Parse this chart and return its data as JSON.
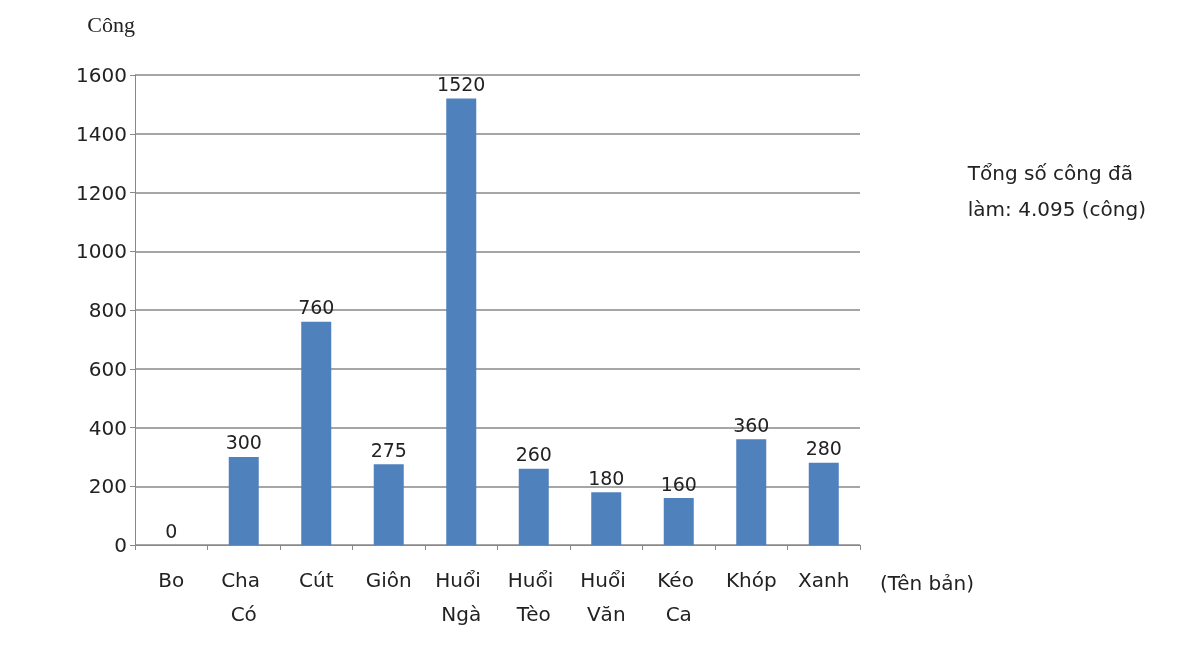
{
  "chart_data": {
    "type": "bar",
    "ylabel": "Công",
    "xlabel": "(Tên bản)",
    "categories": [
      "Bo",
      "Cha Có",
      "Cút",
      "Giôn",
      "Huổi Ngà",
      "Huổi Tèo",
      "Huổi Văn",
      "Kéo Ca",
      "Khóp",
      "Xanh"
    ],
    "values": [
      0,
      300,
      760,
      275,
      1520,
      260,
      180,
      160,
      360,
      280
    ],
    "color": "#4f81bd",
    "ylim": [
      0,
      1600
    ],
    "yticks": [
      0,
      200,
      400,
      600,
      800,
      1000,
      1200,
      1400,
      1600
    ],
    "grid": "y",
    "data_labels": true,
    "annotations": [
      "Tổng số công đã làm: 4.095 (công)"
    ]
  }
}
